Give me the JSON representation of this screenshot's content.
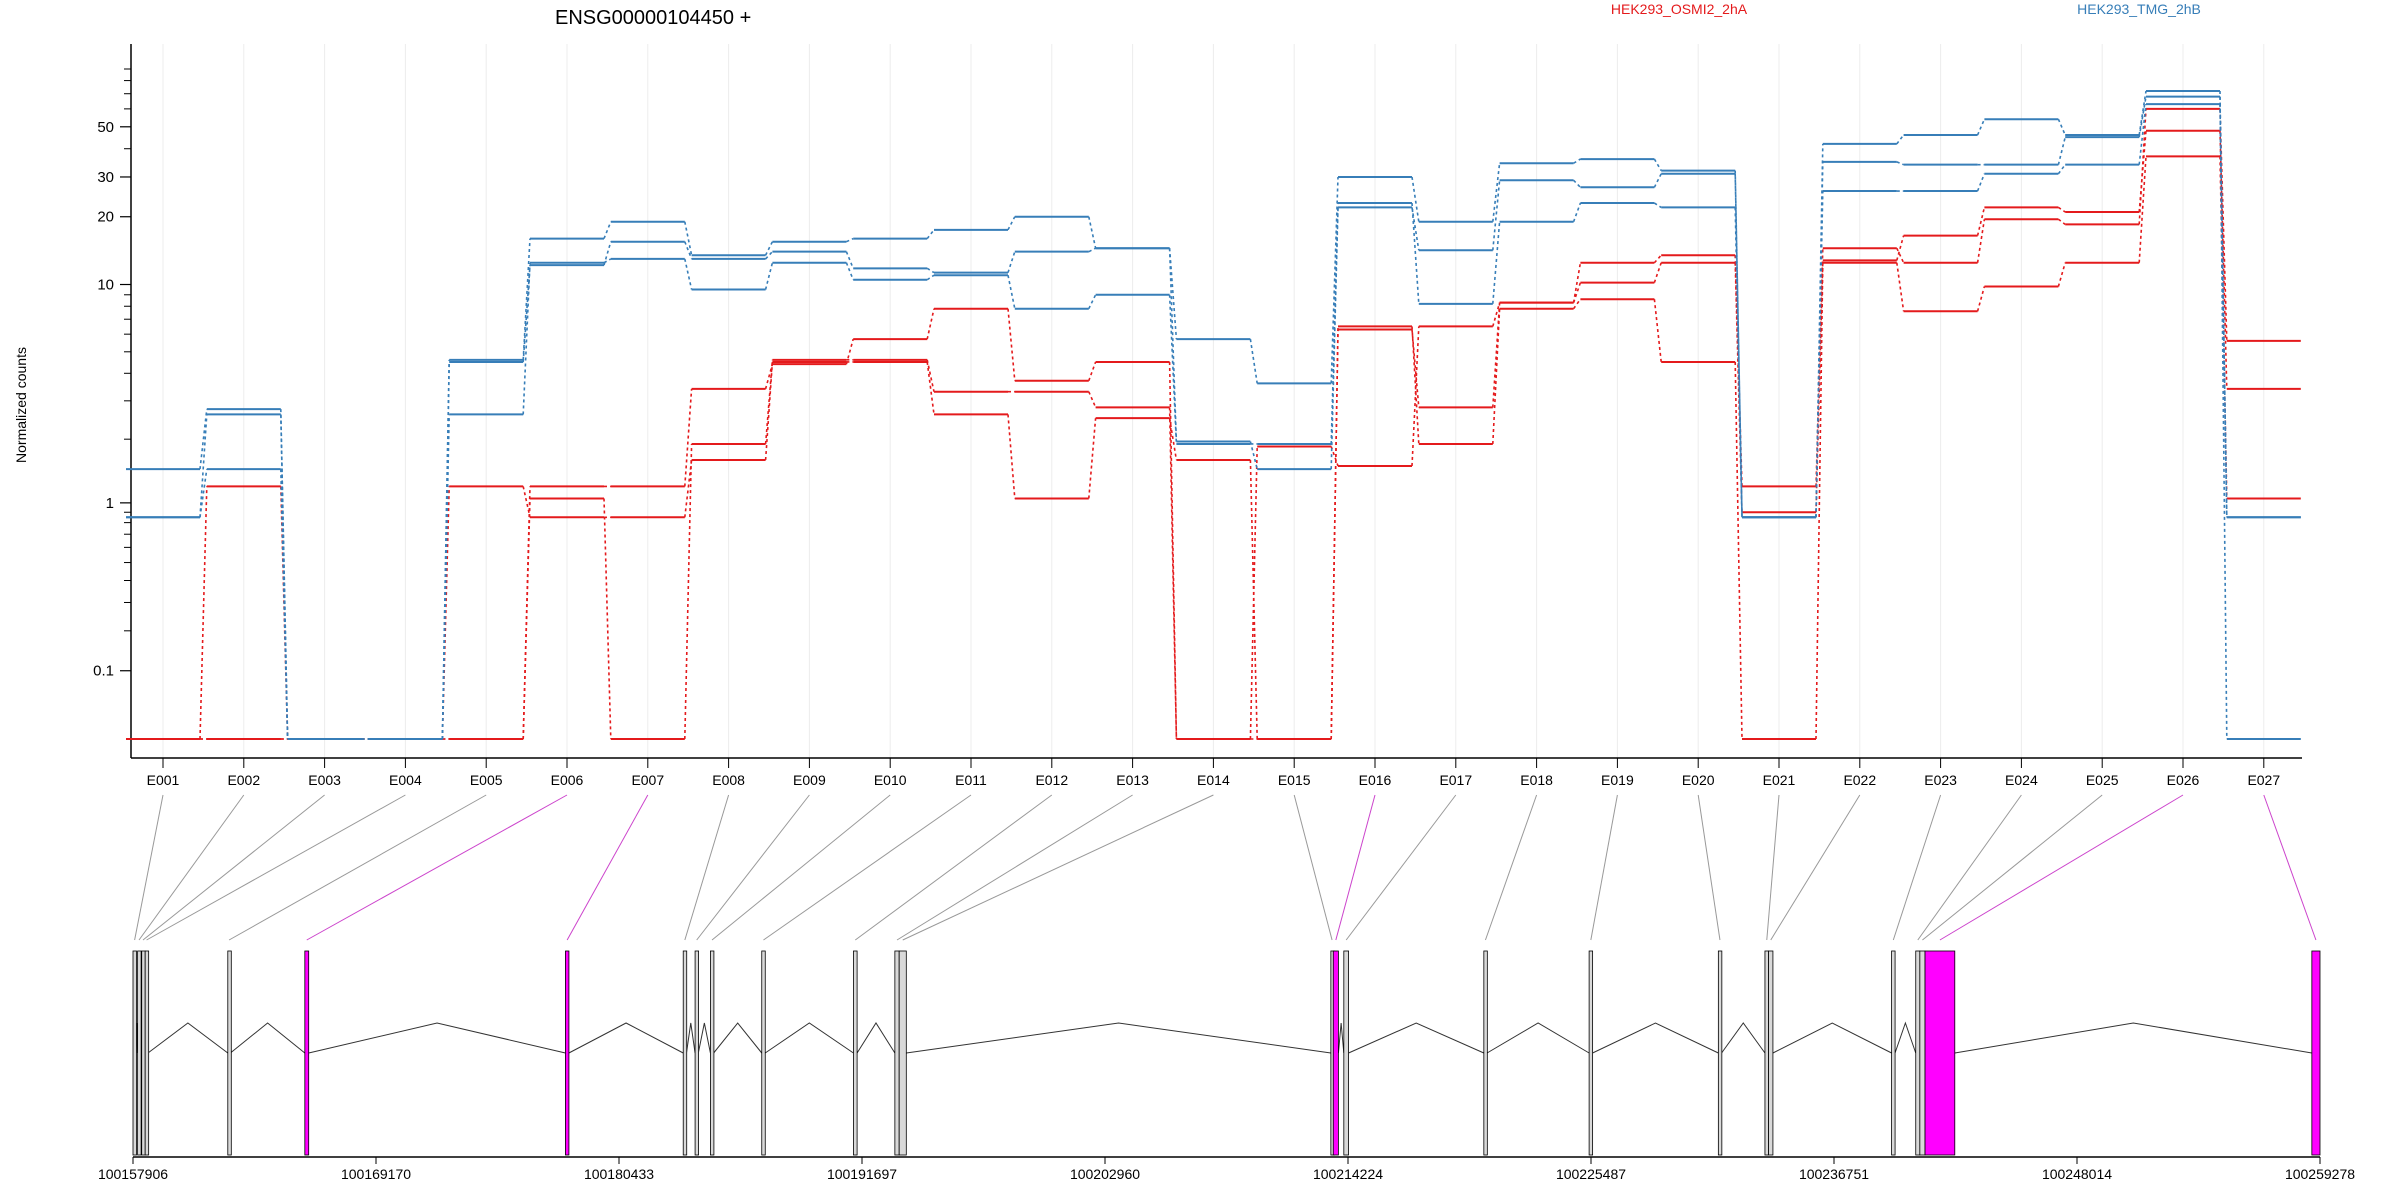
{
  "chart_data": {
    "type": "line",
    "title": "ENSG00000104450 +",
    "ylabel": "Normalized counts",
    "yscale": "log10(count+0.1)",
    "yticks": [
      0.1,
      1,
      10,
      20,
      30,
      50
    ],
    "grid": true,
    "legend": [
      "HEK293_OSMI2_2hA",
      "HEK293_TMG_2hB"
    ],
    "colors": {
      "HEK293_OSMI2_2hA": "#e41a1c",
      "HEK293_TMG_2hB": "#377eb8",
      "highlight": "#ff00ff",
      "exon": "#d9d9d9",
      "line": "#000000"
    },
    "categories": [
      "E001",
      "E002",
      "E003",
      "E004",
      "E005",
      "E006",
      "E007",
      "E008",
      "E009",
      "E010",
      "E011",
      "E012",
      "E013",
      "E014",
      "E015",
      "E016",
      "E017",
      "E018",
      "E019",
      "E020",
      "E021",
      "E022",
      "E023",
      "E024",
      "E025",
      "E026",
      "E027"
    ],
    "series": [
      {
        "name": "HEK293_OSMI2_2hA",
        "values": [
          0,
          1.2,
          0,
          0,
          1.2,
          0.85,
          0.85,
          1.6,
          4.5,
          4.5,
          2.6,
          1.05,
          2.5,
          1.6,
          0,
          6.5,
          1.9,
          7.8,
          8.6,
          4.5,
          0,
          12.5,
          7.6,
          9.8,
          12.5,
          37,
          1.05
        ]
      },
      {
        "name": "HEK293_OSMI2_2hA",
        "values": [
          0,
          0,
          0,
          0,
          0,
          1.05,
          0,
          1.9,
          4.6,
          4.6,
          3.3,
          3.3,
          2.8,
          0,
          1.85,
          1.5,
          6.5,
          8.3,
          10.2,
          12.5,
          0.9,
          12.8,
          16.5,
          22,
          21,
          48,
          3.4
        ]
      },
      {
        "name": "HEK293_OSMI2_2hA",
        "values": [
          0,
          0,
          0,
          0,
          0,
          1.2,
          1.2,
          3.4,
          4.4,
          5.7,
          7.8,
          3.7,
          4.5,
          0,
          0,
          6.3,
          2.8,
          8.3,
          12.5,
          13.5,
          1.2,
          14.5,
          12.5,
          19.5,
          18.5,
          60,
          5.6
        ]
      },
      {
        "name": "HEK293_TMG_2hB",
        "values": [
          0.85,
          2.6,
          0,
          0,
          2.6,
          12.5,
          13,
          9.5,
          12.5,
          10.5,
          11,
          7.8,
          9,
          1.9,
          1.9,
          23,
          8.2,
          19,
          23,
          22,
          0.85,
          26,
          26,
          31,
          34,
          63,
          0.85
        ]
      },
      {
        "name": "HEK293_TMG_2hB",
        "values": [
          1.45,
          2.75,
          0,
          0,
          4.5,
          12.2,
          15.5,
          13,
          14,
          11.8,
          11.3,
          14,
          14.5,
          1.95,
          1.45,
          22,
          14.2,
          29,
          27,
          31,
          0.85,
          35,
          34,
          34,
          45,
          68,
          0.85
        ]
      },
      {
        "name": "HEK293_TMG_2hB",
        "values": [
          0.85,
          1.45,
          0,
          0,
          4.6,
          16,
          19,
          13.5,
          15.5,
          16,
          17.5,
          20,
          14.5,
          5.7,
          3.6,
          30,
          19,
          34.5,
          36,
          32,
          0.85,
          42,
          46,
          54,
          46,
          72,
          0
        ]
      }
    ],
    "gene_model": {
      "coordinate_ticks": [
        "100157906",
        "100169170",
        "100180433",
        "100191697",
        "100202960",
        "100214224",
        "100225487",
        "100236751",
        "100248014",
        "100259278"
      ],
      "coordinate_range": [
        100157906,
        100259278
      ],
      "exon_bins": [
        {
          "id": "E001",
          "start": 100157906,
          "end": 100158056,
          "highlight": false
        },
        {
          "id": "E002",
          "start": 100158120,
          "end": 100158250,
          "highlight": false
        },
        {
          "id": "E003",
          "start": 100158310,
          "end": 100158430,
          "highlight": false
        },
        {
          "id": "E004",
          "start": 100158470,
          "end": 100158600,
          "highlight": false
        },
        {
          "id": "E005",
          "start": 100162300,
          "end": 100162420,
          "highlight": false
        },
        {
          "id": "E006",
          "start": 100165870,
          "end": 100166050,
          "highlight": true
        },
        {
          "id": "E007",
          "start": 100177950,
          "end": 100178110,
          "highlight": true
        },
        {
          "id": "E008",
          "start": 100183410,
          "end": 100183560,
          "highlight": false
        },
        {
          "id": "E009",
          "start": 100183960,
          "end": 100184110,
          "highlight": false
        },
        {
          "id": "E010",
          "start": 100184670,
          "end": 100184820,
          "highlight": false
        },
        {
          "id": "E011",
          "start": 100187050,
          "end": 100187210,
          "highlight": false
        },
        {
          "id": "E012",
          "start": 100191300,
          "end": 100191470,
          "highlight": false
        },
        {
          "id": "E013",
          "start": 100193220,
          "end": 100193420,
          "highlight": false
        },
        {
          "id": "E014",
          "start": 100193420,
          "end": 100193750,
          "highlight": false
        },
        {
          "id": "E015",
          "start": 100213430,
          "end": 100213540,
          "highlight": false
        },
        {
          "id": "E016",
          "start": 100213540,
          "end": 100213780,
          "highlight": true
        },
        {
          "id": "E017",
          "start": 100214030,
          "end": 100214250,
          "highlight": false
        },
        {
          "id": "E018",
          "start": 100220520,
          "end": 100220670,
          "highlight": false
        },
        {
          "id": "E019",
          "start": 100225400,
          "end": 100225560,
          "highlight": false
        },
        {
          "id": "E020",
          "start": 100231390,
          "end": 100231540,
          "highlight": false
        },
        {
          "id": "E021",
          "start": 100233550,
          "end": 100233720,
          "highlight": false
        },
        {
          "id": "E022",
          "start": 100233720,
          "end": 100233920,
          "highlight": false
        },
        {
          "id": "E023",
          "start": 100239420,
          "end": 100239580,
          "highlight": false
        },
        {
          "id": "E024",
          "start": 100240540,
          "end": 100240730,
          "highlight": false
        },
        {
          "id": "E025",
          "start": 100240730,
          "end": 100240970,
          "highlight": false
        },
        {
          "id": "E026",
          "start": 100240970,
          "end": 100242350,
          "highlight": true
        },
        {
          "id": "E027",
          "start": 100258900,
          "end": 100259278,
          "highlight": true
        }
      ]
    }
  }
}
